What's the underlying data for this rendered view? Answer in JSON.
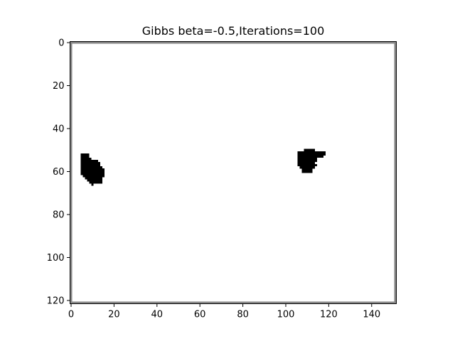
{
  "chart_data": {
    "type": "heatmap",
    "title": "Gibbs beta=-0.5,Iterations=100",
    "xlabel": "",
    "ylabel": "",
    "image_size": {
      "cols": 152,
      "rows": 122
    },
    "xlim": [
      -0.5,
      151.5
    ],
    "ylim": [
      121.5,
      -0.5
    ],
    "x_ticks": [
      0,
      20,
      40,
      60,
      80,
      100,
      120,
      140
    ],
    "y_ticks": [
      0,
      20,
      40,
      60,
      80,
      100,
      120
    ],
    "grid": false,
    "background_value": "white",
    "colors": {
      "background": "#ffffff",
      "foreground": "#000000"
    },
    "edge_lines": {
      "left_columns": [
        0
      ],
      "top_rows": [
        0
      ],
      "bottom_rows": [
        121
      ],
      "right_columns": [
        151
      ]
    },
    "blobs": [
      {
        "name": "",
        "runs": [
          {
            "row": 52,
            "c0": 5,
            "c1": 8
          },
          {
            "row": 53,
            "c0": 5,
            "c1": 8
          },
          {
            "row": 54,
            "c0": 5,
            "c1": 9
          },
          {
            "row": 55,
            "c0": 5,
            "c1": 12
          },
          {
            "row": 56,
            "c0": 5,
            "c1": 13
          },
          {
            "row": 57,
            "c0": 5,
            "c1": 13
          },
          {
            "row": 58,
            "c0": 5,
            "c1": 14
          },
          {
            "row": 59,
            "c0": 5,
            "c1": 15
          },
          {
            "row": 60,
            "c0": 5,
            "c1": 15
          },
          {
            "row": 61,
            "c0": 5,
            "c1": 15
          },
          {
            "row": 62,
            "c0": 6,
            "c1": 15
          },
          {
            "row": 63,
            "c0": 7,
            "c1": 14
          },
          {
            "row": 64,
            "c0": 8,
            "c1": 14
          },
          {
            "row": 65,
            "c0": 9,
            "c1": 14
          },
          {
            "row": 66,
            "c0": 10,
            "c1": 10
          }
        ]
      },
      {
        "name": "",
        "runs": [
          {
            "row": 50,
            "c0": 109,
            "c1": 113
          },
          {
            "row": 51,
            "c0": 106,
            "c1": 118
          },
          {
            "row": 52,
            "c0": 106,
            "c1": 118
          },
          {
            "row": 53,
            "c0": 106,
            "c1": 117
          },
          {
            "row": 54,
            "c0": 106,
            "c1": 114
          },
          {
            "row": 55,
            "c0": 106,
            "c1": 114
          },
          {
            "row": 56,
            "c0": 106,
            "c1": 113
          },
          {
            "row": 57,
            "c0": 106,
            "c1": 114
          },
          {
            "row": 58,
            "c0": 107,
            "c1": 113
          },
          {
            "row": 59,
            "c0": 108,
            "c1": 112
          },
          {
            "row": 60,
            "c0": 108,
            "c1": 112
          }
        ]
      }
    ]
  }
}
